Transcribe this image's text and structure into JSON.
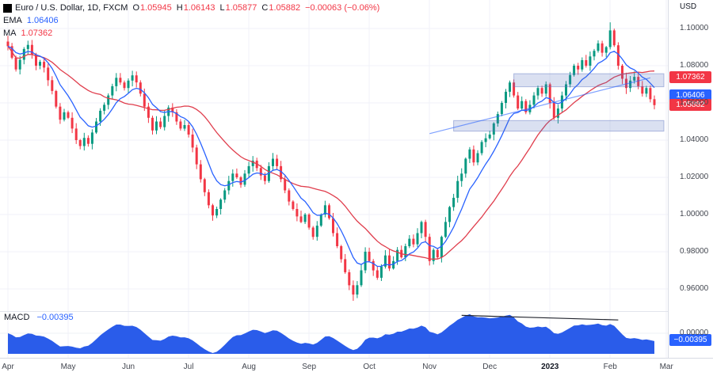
{
  "header": {
    "symbol_title": "Euro / U.S. Dollar, 1D, FXCM",
    "ohlc": {
      "o_label": "O",
      "o_value": "1.05945",
      "h_label": "H",
      "h_value": "1.06143",
      "l_label": "L",
      "l_value": "1.05877",
      "c_label": "C",
      "c_value": "1.05882",
      "change": "−0.00063 (−0.06%)"
    },
    "ema_label": "EMA",
    "ema_value": "1.06406",
    "ma_label": "MA",
    "ma_value": "1.07362",
    "currency_label": "USD"
  },
  "macd_header": {
    "label": "MACD",
    "value": "−0.00395"
  },
  "price_axis": {
    "ticks": [
      {
        "label": "1.10000",
        "price": 1.1
      },
      {
        "label": "1.08000",
        "price": 1.08
      },
      {
        "label": "1.06000",
        "price": 1.06
      },
      {
        "label": "1.04000",
        "price": 1.04
      },
      {
        "label": "1.02000",
        "price": 1.02
      },
      {
        "label": "1.00000",
        "price": 1.0
      },
      {
        "label": "0.98000",
        "price": 0.98
      },
      {
        "label": "0.96000",
        "price": 0.96
      }
    ],
    "badges": [
      {
        "text": "1.07362",
        "color": "#f23645",
        "price": 1.07362
      },
      {
        "text": "1.06406",
        "color": "#2962ff",
        "price": 1.06406
      },
      {
        "text": "1.05882",
        "color": "#f23645",
        "price": 1.05882
      }
    ]
  },
  "macd_axis": {
    "zero_label": "0.00000",
    "badge": {
      "text": "−0.00395",
      "color": "#2962ff",
      "value": -0.00395
    }
  },
  "time_axis": {
    "labels": [
      {
        "text": "Apr",
        "index": 0
      },
      {
        "text": "May",
        "index": 15
      },
      {
        "text": "Jun",
        "index": 30
      },
      {
        "text": "Jul",
        "index": 45
      },
      {
        "text": "Aug",
        "index": 60
      },
      {
        "text": "Sep",
        "index": 75
      },
      {
        "text": "Oct",
        "index": 90
      },
      {
        "text": "Nov",
        "index": 105
      },
      {
        "text": "Dec",
        "index": 120
      },
      {
        "text": "2023",
        "index": 135,
        "bold": true
      },
      {
        "text": "Feb",
        "index": 150
      },
      {
        "text": "Mar",
        "index": 164
      }
    ]
  },
  "chart_data": {
    "type": "candlestick",
    "title": "Euro / U.S. Dollar, 1D, FXCM",
    "symbol": "EUR/USD",
    "timeframe": "1D",
    "x_range": [
      "Apr 2022",
      "Mar 2023"
    ],
    "ylim": [
      0.949,
      1.115
    ],
    "open_first": 1.093,
    "closes": [
      1.0905,
      1.0843,
      1.078,
      1.0832,
      1.089,
      1.0912,
      1.0861,
      1.08,
      1.0821,
      1.079,
      1.0722,
      1.0664,
      1.058,
      1.051,
      1.055,
      1.052,
      1.0462,
      1.04,
      1.0368,
      1.0412,
      1.038,
      1.0441,
      1.05,
      1.0558,
      1.059,
      1.064,
      1.069,
      1.0735,
      1.071,
      1.068,
      1.072,
      1.0748,
      1.071,
      1.065,
      1.058,
      1.052,
      1.0452,
      1.05,
      1.047,
      1.053,
      1.0575,
      1.055,
      1.05,
      1.0462,
      1.0481,
      1.043,
      1.036,
      1.027,
      1.019,
      1.012,
      1.005,
      0.9995,
      1.003,
      1.008,
      1.013,
      1.018,
      1.022,
      1.02,
      1.016,
      1.022,
      1.026,
      1.029,
      1.025,
      1.021,
      1.018,
      1.026,
      1.03,
      1.026,
      1.019,
      1.013,
      1.007,
      1.003,
      0.999,
      0.996,
      1.0,
      0.993,
      0.988,
      0.994,
      1.0,
      1.005,
      0.998,
      0.99,
      0.983,
      0.976,
      0.969,
      0.962,
      0.957,
      0.962,
      0.97,
      0.98,
      0.975,
      0.97,
      0.966,
      0.972,
      0.978,
      0.971,
      0.975,
      0.981,
      0.977,
      0.983,
      0.987,
      0.984,
      0.99,
      0.996,
      0.988,
      0.975,
      0.981,
      0.977,
      0.988,
      0.996,
      1.004,
      1.009,
      1.018,
      1.022,
      1.03,
      1.035,
      1.028,
      1.033,
      1.039,
      1.041,
      1.043,
      1.049,
      1.054,
      1.06,
      1.066,
      1.071,
      1.064,
      1.057,
      1.061,
      1.055,
      1.059,
      1.064,
      1.068,
      1.065,
      1.07,
      1.06,
      1.052,
      1.057,
      1.064,
      1.07,
      1.075,
      1.08,
      1.078,
      1.083,
      1.08,
      1.085,
      1.088,
      1.092,
      1.087,
      1.09,
      1.099,
      1.091,
      1.08,
      1.073,
      1.068,
      1.072,
      1.074,
      1.069,
      1.065,
      1.068,
      1.062,
      1.05882
    ],
    "high_overrides": [
      [
        150,
        1.1033
      ]
    ],
    "low_overrides": [
      [
        86,
        0.9536
      ]
    ],
    "last_close": 1.05882,
    "overlays": {
      "ema": {
        "label": "EMA",
        "period": 9,
        "color": "#2962ff",
        "last": 1.06406
      },
      "ma": {
        "label": "MA",
        "period": 24,
        "color": "#e03e4d",
        "last": 1.07362
      }
    },
    "macd": {
      "fast": 5,
      "slow": 10,
      "last": -0.00395,
      "fill": "#2a5cea"
    },
    "zones": [
      {
        "price_top": 1.0757,
        "price_bottom": 1.0687,
        "start_index": 126,
        "fill": "rgba(88,112,190,0.22)",
        "stroke": "rgba(88,112,190,0.45)"
      },
      {
        "price_top": 1.0505,
        "price_bottom": 1.0448,
        "start_index": 111,
        "fill": "rgba(88,112,190,0.22)",
        "stroke": "rgba(88,112,190,0.45)"
      }
    ],
    "trendlines": [
      {
        "pane": "price",
        "x1_index": 105,
        "p1": 1.0435,
        "x2_index": 160,
        "p2": 1.0735,
        "color": "rgba(41,98,255,0.6)"
      },
      {
        "pane": "macd",
        "x1_index": 113,
        "v1": 0.0105,
        "x2_index": 152,
        "v2": 0.0078,
        "color": "#22252e"
      }
    ],
    "colors": {
      "up": "#089981",
      "down": "#f23645",
      "grid": "#f0f2f8",
      "separator": "#d8dbe4",
      "pane_split": "#e2e5ec"
    }
  }
}
